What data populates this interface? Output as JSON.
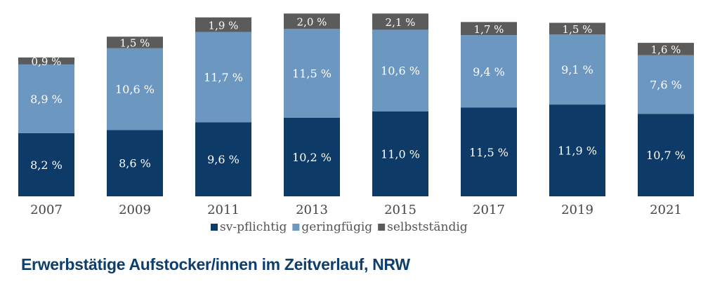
{
  "caption": "Erwerbstätige Aufstocker/innen im Zeitverlauf, NRW",
  "chart_data": {
    "type": "bar",
    "stacked": true,
    "categories": [
      "2007",
      "2009",
      "2011",
      "2013",
      "2015",
      "2017",
      "2019",
      "2021"
    ],
    "series": [
      {
        "name": "sv-pflichtig",
        "color": "#0d3a66",
        "values": [
          8.2,
          8.6,
          9.6,
          10.2,
          11.0,
          11.5,
          11.9,
          10.7
        ],
        "labels": [
          "8,2 %",
          "8,6 %",
          "9,6 %",
          "10,2 %",
          "11,0 %",
          "11,5 %",
          "11,9 %",
          "10,7 %"
        ]
      },
      {
        "name": "geringfügig",
        "color": "#6b97c1",
        "values": [
          8.9,
          10.6,
          11.7,
          11.5,
          10.6,
          9.4,
          9.1,
          7.6
        ],
        "labels": [
          "8,9 %",
          "10,6 %",
          "11,7 %",
          "11,5 %",
          "10,6 %",
          "9,4 %",
          "9,1 %",
          "7,6 %"
        ]
      },
      {
        "name": "selbstständig",
        "color": "#5b5b5b",
        "values": [
          0.9,
          1.5,
          1.9,
          2.0,
          2.1,
          1.7,
          1.5,
          1.6
        ],
        "labels": [
          "0,9 %",
          "1,5 %",
          "1,9 %",
          "2,0 %",
          "2,1 %",
          "1,7 %",
          "1,5 %",
          "1,6 %"
        ]
      }
    ],
    "ylim": [
      0,
      25
    ],
    "grid": false,
    "legend": "bottom",
    "data_labels": true
  }
}
